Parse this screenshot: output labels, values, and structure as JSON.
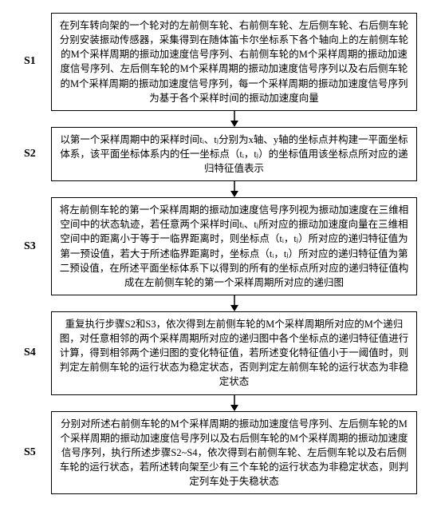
{
  "flow": {
    "label_fontsize": 14,
    "box_fontsize": 12.5,
    "border_color": "#000000",
    "background_color": "#ffffff",
    "arrow_color": "#000000",
    "arrow_length": 20,
    "steps": [
      {
        "id": "S1",
        "text": "在列车转向架的一个轮对的左前侧车轮、右前侧车轮、左后侧车轮、右后侧车轮分别安装振动传感器，采集得到在随体笛卡尔坐标系下各个轴向上的左前侧车轮的M个采样周期的振动加速度信号序列、右前侧车轮的M个采样周期的振动加速度信号序列、左后侧车轮的M个采样周期的振动加速度信号序列以及右后侧车轮的M个采样周期的振动加速度信号序列，每一个采样周期的振动加速度信号序列为基于各个采样时间的振动加速度向量"
      },
      {
        "id": "S2",
        "text": "以第一个采样周期中的采样时间tᵢ、tⱼ分别为x轴、y轴的坐标点并构建一平面坐标体系，该平面坐标体系内的任一坐标点（tᵢ，tⱼ）的坐标值用该坐标点所对应的递归特征值表示"
      },
      {
        "id": "S3",
        "text": "将左前侧车轮的第一个采样周期的振动加速度信号序列视为振动加速度在三维相空间中的状态轨迹，若任意两个采样时间tᵢ、tⱼ所对应的振动加速度向量在三维相空间中的距离小于等于一临界距离时，则坐标点（tᵢ，tⱼ）所对应的递归特征值为第一预设值，若大于所述临界距离时，坐标点（tᵢ，tⱼ）所对应的递归特征值为第二预设值，在所述平面坐标体系下以得到的所有的坐标点所对应的递归特征值构成在左前侧车轮的第一个采样周期所对应的递归图"
      },
      {
        "id": "S4",
        "text": "重复执行步骤S2和S3，依次得到左前侧车轮的M个采样周期所对应的M个递归图，对任意相邻的两个采样周期所对应的递归图中各个坐标点的递归特征值进行计算，得到相邻两个递归图的变化特征值，若所述变化特征值小于一阈值时，则判定左前侧车轮的运行状态为稳定状态，否则判定左前侧车轮的运行状态为非稳定状态"
      },
      {
        "id": "S5",
        "text": "分别对所述右前侧车轮的M个采样周期的振动加速度信号序列、左后侧车轮的M个采样周期的振动加速度信号序列以及右后侧车轮的M个采样周期的振动加速度信号序列，执行所述步骤S2~S4，依次得到右前侧车轮、左后侧车轮以及右后侧车轮的运行状态，若所述转向架至少有三个车轮的运行状态为非稳定状态，则判定列车处于失稳状态"
      }
    ]
  }
}
